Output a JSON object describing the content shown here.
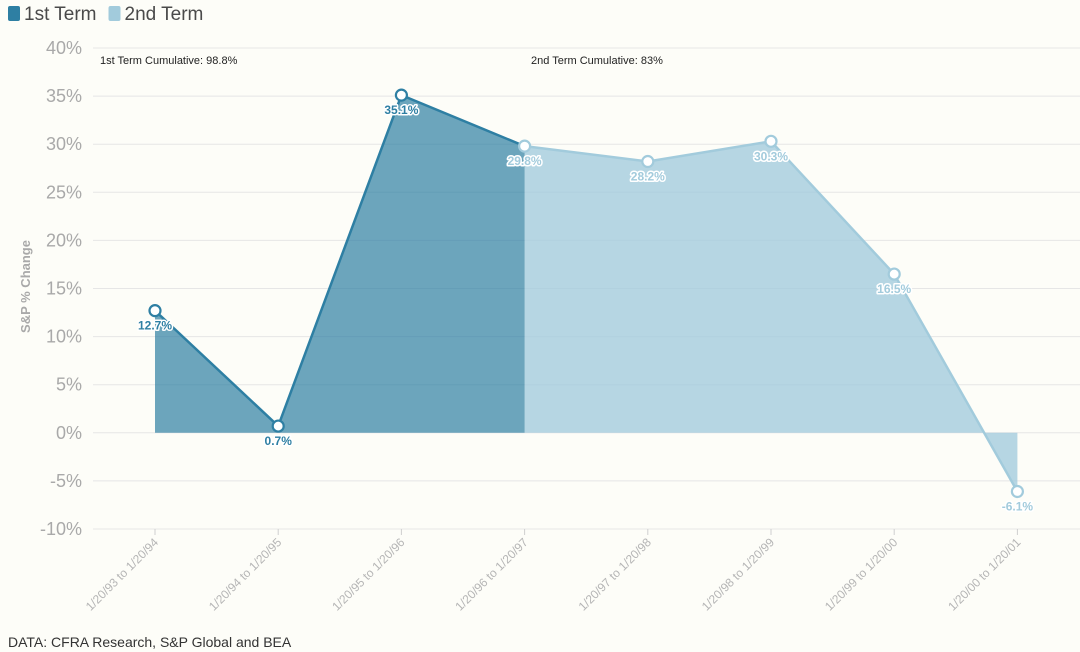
{
  "chart_data": {
    "type": "area",
    "categories": [
      "1/20/93 to 1/20/94",
      "1/20/94 to 1/20/95",
      "1/20/95 to 1/20/96",
      "1/20/96 to 1/20/97",
      "1/20/97 to 1/20/98",
      "1/20/98 to 1/20/99",
      "1/20/99 to 1/20/00",
      "1/20/00 to 1/20/01"
    ],
    "series": [
      {
        "name": "1st Term",
        "values": [
          12.7,
          0.7,
          35.1,
          29.8,
          null,
          null,
          null,
          null
        ],
        "color": "#2e7fa3"
      },
      {
        "name": "2nd Term",
        "values": [
          null,
          null,
          null,
          29.8,
          28.2,
          30.3,
          16.5,
          -6.1
        ],
        "color": "#a2cbdc"
      }
    ],
    "data_labels": [
      "12.7%",
      "0.7%",
      "35.1%",
      "29.8%",
      "28.2%",
      "30.3%",
      "16.5%",
      "-6.1%"
    ],
    "y_ticks": [
      "-10%",
      "-5%",
      "0%",
      "5%",
      "10%",
      "15%",
      "20%",
      "25%",
      "30%",
      "35%",
      "40%"
    ],
    "ylim": [
      -10,
      40
    ],
    "ylabel": "S&P % Change",
    "xlabel": "",
    "title": "",
    "grid": true,
    "legend": "top-left",
    "annotations": [
      "1st Term Cumulative: 98.8%",
      "2nd Term Cumulative: 83%"
    ]
  },
  "legend": {
    "items": [
      {
        "label": "1st Term",
        "color": "#2e7fa3"
      },
      {
        "label": "2nd Term",
        "color": "#a2cbdc"
      }
    ]
  },
  "source": "DATA: CFRA Research, S&P Global and BEA"
}
